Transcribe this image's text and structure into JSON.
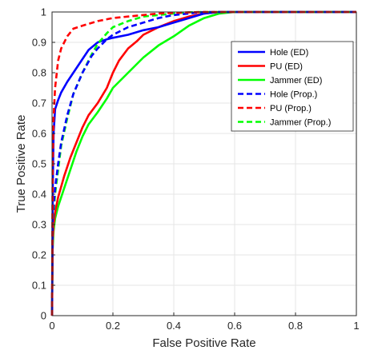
{
  "chart_data": {
    "type": "line",
    "title": "",
    "xlabel": "False Positive Rate",
    "ylabel": "True Positive Rate",
    "xlim": [
      0,
      1
    ],
    "ylim": [
      0,
      1
    ],
    "grid": true,
    "legend_position": "top-right",
    "x_ticks": [
      "0",
      "0.2",
      "0.4",
      "0.6",
      "0.8",
      "1"
    ],
    "y_ticks": [
      "0",
      "0.1",
      "0.2",
      "0.3",
      "0.4",
      "0.5",
      "0.6",
      "0.7",
      "0.8",
      "0.9",
      "1"
    ],
    "series": [
      {
        "name": "Hole (ED)",
        "color": "#0000ff",
        "dash": "solid",
        "x": [
          0,
          0.002,
          0.005,
          0.01,
          0.02,
          0.03,
          0.05,
          0.07,
          0.1,
          0.12,
          0.15,
          0.18,
          0.2,
          0.25,
          0.3,
          0.35,
          0.4,
          0.45,
          0.5,
          0.55,
          1
        ],
        "y": [
          0,
          0.4,
          0.6,
          0.68,
          0.71,
          0.735,
          0.77,
          0.8,
          0.845,
          0.875,
          0.9,
          0.91,
          0.915,
          0.925,
          0.94,
          0.95,
          0.965,
          0.98,
          0.995,
          1,
          1
        ]
      },
      {
        "name": "PU (ED)",
        "color": "#ff0000",
        "dash": "solid",
        "x": [
          0,
          0.002,
          0.005,
          0.01,
          0.02,
          0.04,
          0.06,
          0.08,
          0.1,
          0.12,
          0.15,
          0.18,
          0.2,
          0.22,
          0.25,
          0.28,
          0.3,
          0.35,
          0.4,
          0.45,
          0.5,
          0.55,
          1
        ],
        "y": [
          0,
          0.25,
          0.3,
          0.34,
          0.39,
          0.46,
          0.52,
          0.57,
          0.62,
          0.66,
          0.7,
          0.75,
          0.8,
          0.84,
          0.88,
          0.905,
          0.925,
          0.95,
          0.97,
          0.985,
          0.995,
          1,
          1
        ]
      },
      {
        "name": "Jammer (ED)",
        "color": "#00ff00",
        "dash": "solid",
        "x": [
          0,
          0.002,
          0.005,
          0.01,
          0.02,
          0.04,
          0.06,
          0.08,
          0.1,
          0.12,
          0.15,
          0.18,
          0.2,
          0.25,
          0.3,
          0.35,
          0.4,
          0.45,
          0.5,
          0.55,
          0.6,
          1
        ],
        "y": [
          0,
          0.22,
          0.28,
          0.32,
          0.36,
          0.42,
          0.48,
          0.54,
          0.59,
          0.63,
          0.67,
          0.715,
          0.75,
          0.8,
          0.85,
          0.89,
          0.92,
          0.955,
          0.98,
          0.995,
          1,
          1
        ]
      },
      {
        "name": "Hole (Prop.)",
        "color": "#0000ff",
        "dash": "dashed",
        "x": [
          0,
          0.002,
          0.005,
          0.01,
          0.02,
          0.03,
          0.05,
          0.07,
          0.1,
          0.13,
          0.15,
          0.18,
          0.2,
          0.25,
          0.3,
          0.35,
          0.4,
          0.45,
          0.5,
          1
        ],
        "y": [
          0,
          0.3,
          0.36,
          0.42,
          0.5,
          0.57,
          0.66,
          0.73,
          0.8,
          0.855,
          0.88,
          0.91,
          0.925,
          0.95,
          0.965,
          0.98,
          0.99,
          0.995,
          1,
          1
        ]
      },
      {
        "name": "PU (Prop.)",
        "color": "#ff0000",
        "dash": "dashed",
        "x": [
          0,
          0.002,
          0.005,
          0.01,
          0.02,
          0.03,
          0.05,
          0.07,
          0.1,
          0.15,
          0.2,
          0.25,
          0.3,
          0.35,
          0.4,
          0.45,
          0.5,
          1
        ],
        "y": [
          0,
          0.5,
          0.65,
          0.75,
          0.84,
          0.88,
          0.92,
          0.945,
          0.955,
          0.97,
          0.98,
          0.985,
          0.99,
          0.995,
          0.997,
          0.999,
          1,
          1
        ]
      },
      {
        "name": "Jammer (Prop.)",
        "color": "#00ff00",
        "dash": "dashed",
        "x": [
          0,
          0.002,
          0.005,
          0.01,
          0.02,
          0.03,
          0.05,
          0.07,
          0.1,
          0.13,
          0.15,
          0.18,
          0.2,
          0.25,
          0.3,
          0.35,
          0.4,
          0.45,
          0.5,
          1
        ],
        "y": [
          0,
          0.28,
          0.34,
          0.4,
          0.48,
          0.56,
          0.65,
          0.73,
          0.8,
          0.86,
          0.895,
          0.93,
          0.95,
          0.97,
          0.985,
          0.99,
          0.995,
          0.999,
          1,
          1
        ]
      }
    ]
  }
}
